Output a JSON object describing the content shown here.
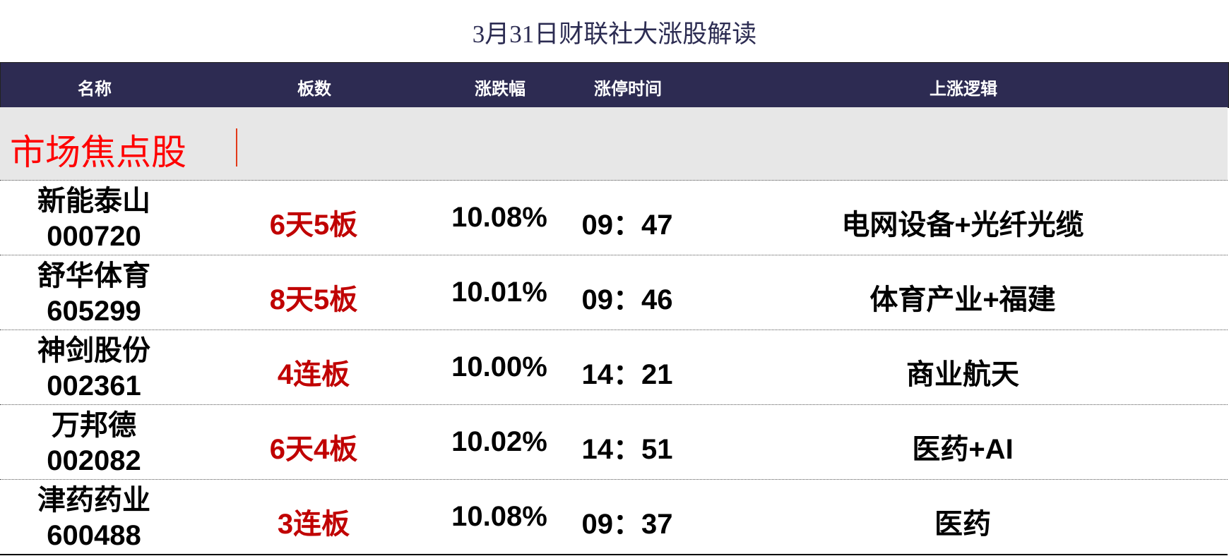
{
  "title": "3月31日财联社大涨股解读",
  "header": {
    "name": "名称",
    "boards": "板数",
    "change": "涨跌幅",
    "limit_time": "涨停时间",
    "logic": "上涨逻辑"
  },
  "section": {
    "label": "市场焦点股"
  },
  "colors": {
    "header_bg": "#2d2b52",
    "section_bg": "#e7e7e7",
    "section_label": "#ff0000",
    "boards_text": "#c00000"
  },
  "rows": [
    {
      "name": "新能泰山",
      "code": "000720",
      "boards": "6天5板",
      "change": "10.08%",
      "time": "09：47",
      "logic": "电网设备+光纤光缆"
    },
    {
      "name": "舒华体育",
      "code": "605299",
      "boards": "8天5板",
      "change": "10.01%",
      "time": "09：46",
      "logic": "体育产业+福建"
    },
    {
      "name": "神剑股份",
      "code": "002361",
      "boards": "4连板",
      "change": "10.00%",
      "time": "14：21",
      "logic": "商业航天"
    },
    {
      "name": "万邦德",
      "code": "002082",
      "boards": "6天4板",
      "change": "10.02%",
      "time": "14：51",
      "logic": "医药+AI"
    },
    {
      "name": "津药药业",
      "code": "600488",
      "boards": "3连板",
      "change": "10.08%",
      "time": "09：37",
      "logic": "医药"
    }
  ]
}
